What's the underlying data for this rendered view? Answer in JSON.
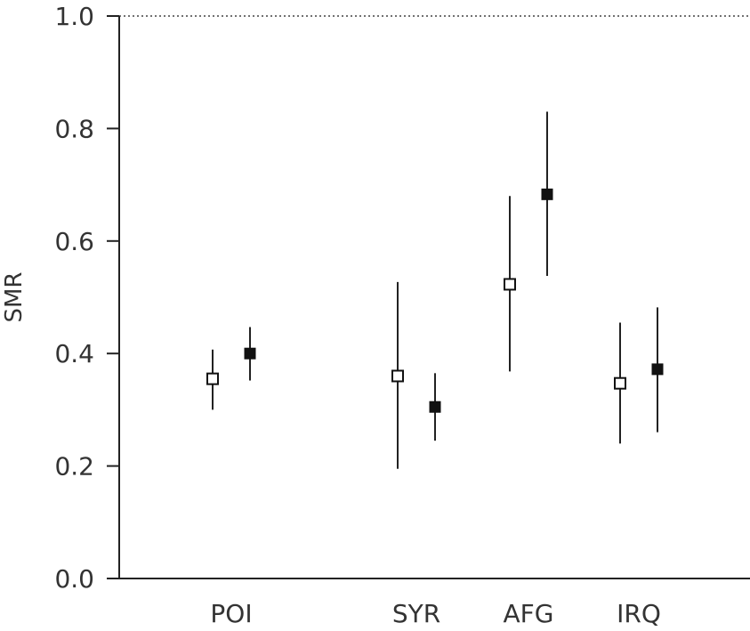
{
  "chart_data": {
    "type": "scatter",
    "title": "",
    "xlabel": "",
    "ylabel": "SMR",
    "ylim": [
      0.0,
      1.0
    ],
    "yticks": [
      "0.0",
      "0.2",
      "0.4",
      "0.6",
      "0.8",
      "1.0"
    ],
    "reference_line": {
      "y": 1.0,
      "style": "dotted"
    },
    "grid": false,
    "legend": "none",
    "categories": [
      "POI",
      "SYR",
      "AFG",
      "IRQ"
    ],
    "series": [
      {
        "marker": "open-square",
        "color": "#ffffff",
        "points": [
          {
            "category": "POI",
            "y": 0.355,
            "low": 0.3,
            "high": 0.407
          },
          {
            "category": "SYR",
            "y": 0.36,
            "low": 0.195,
            "high": 0.527
          },
          {
            "category": "AFG",
            "y": 0.523,
            "low": 0.368,
            "high": 0.68
          },
          {
            "category": "IRQ",
            "y": 0.347,
            "low": 0.24,
            "high": 0.455
          }
        ]
      },
      {
        "marker": "filled-square",
        "color": "#111111",
        "points": [
          {
            "category": "POI",
            "y": 0.4,
            "low": 0.352,
            "high": 0.447
          },
          {
            "category": "SYR",
            "y": 0.305,
            "low": 0.245,
            "high": 0.365
          },
          {
            "category": "AFG",
            "y": 0.683,
            "low": 0.538,
            "high": 0.83
          },
          {
            "category": "IRQ",
            "y": 0.372,
            "low": 0.26,
            "high": 0.482
          }
        ]
      }
    ]
  }
}
